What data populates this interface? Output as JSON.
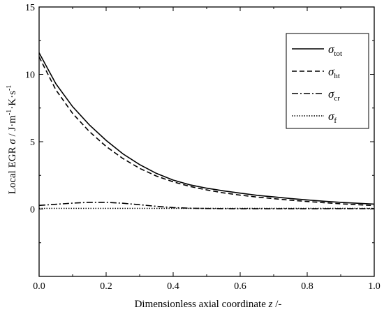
{
  "chart_data": {
    "type": "line",
    "xlabel": {
      "main": "Dimensionless axial coordinate ",
      "var": "z",
      "unit": " /-"
    },
    "ylabel": {
      "main": "Local EGR  ",
      "var": "σ",
      "unit": " / J·m",
      "unit_exp1": "-1",
      "unit_mid": "·K·s",
      "unit_exp2": "-1"
    },
    "xlim": [
      0.0,
      1.0
    ],
    "ylim": [
      -5,
      15
    ],
    "x_ticks": [
      "0.0",
      "0.2",
      "0.4",
      "0.6",
      "0.8",
      "1.0"
    ],
    "y_ticks": [
      "0",
      "5",
      "10",
      "15"
    ],
    "grid": false,
    "legend_position": "top-right",
    "series": [
      {
        "name": "σtot",
        "symbol": "σ",
        "sub": "tot",
        "style": "solid",
        "x": [
          0.0,
          0.05,
          0.1,
          0.15,
          0.2,
          0.25,
          0.3,
          0.35,
          0.4,
          0.45,
          0.5,
          0.55,
          0.6,
          0.65,
          0.7,
          0.75,
          0.8,
          0.85,
          0.9,
          0.95,
          1.0
        ],
        "y": [
          11.6,
          9.3,
          7.6,
          6.25,
          5.1,
          4.1,
          3.3,
          2.65,
          2.15,
          1.8,
          1.55,
          1.35,
          1.18,
          1.02,
          0.9,
          0.78,
          0.68,
          0.58,
          0.5,
          0.43,
          0.37
        ]
      },
      {
        "name": "σht",
        "symbol": "σ",
        "sub": "ht",
        "style": "dashed",
        "x": [
          0.0,
          0.05,
          0.1,
          0.15,
          0.2,
          0.25,
          0.3,
          0.35,
          0.4,
          0.45,
          0.5,
          0.55,
          0.6,
          0.65,
          0.7,
          0.75,
          0.8,
          0.85,
          0.9,
          0.95,
          1.0
        ],
        "y": [
          11.3,
          8.85,
          7.1,
          5.75,
          4.65,
          3.75,
          3.02,
          2.45,
          2.02,
          1.68,
          1.42,
          1.2,
          1.03,
          0.89,
          0.77,
          0.66,
          0.56,
          0.47,
          0.39,
          0.32,
          0.26
        ]
      },
      {
        "name": "σcr",
        "symbol": "σ",
        "sub": "cr",
        "style": "dashdot",
        "x": [
          0.0,
          0.05,
          0.1,
          0.15,
          0.2,
          0.25,
          0.3,
          0.35,
          0.4,
          0.45,
          0.5,
          0.6,
          0.7,
          0.8,
          0.9,
          1.0
        ],
        "y": [
          0.27,
          0.35,
          0.44,
          0.5,
          0.5,
          0.43,
          0.32,
          0.2,
          0.11,
          0.06,
          0.04,
          0.02,
          0.02,
          0.02,
          0.03,
          0.03
        ]
      },
      {
        "name": "σf",
        "symbol": "σ",
        "sub": "f",
        "style": "dotted",
        "x": [
          0.0,
          0.2,
          0.4,
          0.6,
          0.8,
          1.0
        ],
        "y": [
          0.05,
          0.05,
          0.05,
          0.05,
          0.05,
          0.05
        ]
      }
    ]
  }
}
